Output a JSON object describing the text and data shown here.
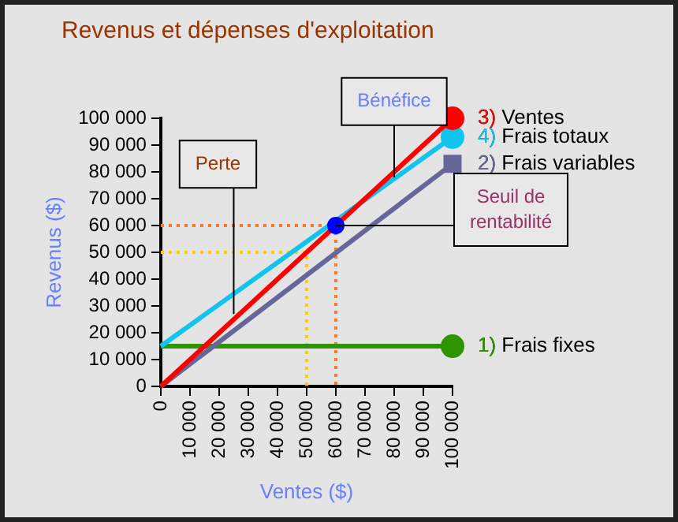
{
  "chart_data": {
    "type": "line",
    "title": "Revenus et dépenses d'exploitation",
    "xlabel": "Ventes ($)",
    "ylabel": "Revenus ($)",
    "xlim": [
      0,
      100000
    ],
    "ylim": [
      0,
      100000
    ],
    "xticks": [
      0,
      {
        "value": 10000,
        "label": "10 000"
      },
      {
        "value": 20000,
        "label": "20 000"
      },
      {
        "value": 30000,
        "label": "30 000"
      },
      {
        "value": 40000,
        "label": "40 000"
      },
      {
        "value": 50000,
        "label": "50 000"
      },
      {
        "value": 60000,
        "label": "60 000"
      },
      {
        "value": 70000,
        "label": "70 000"
      },
      {
        "value": 80000,
        "label": "80 000"
      },
      {
        "value": 90000,
        "label": "90 000"
      },
      {
        "value": 100000,
        "label": "100 000"
      }
    ],
    "yticks": [
      0,
      {
        "value": 10000,
        "label": "10 000"
      },
      {
        "value": 20000,
        "label": "20 000"
      },
      {
        "value": 30000,
        "label": "30 000"
      },
      {
        "value": 40000,
        "label": "40 000"
      },
      {
        "value": 50000,
        "label": "50 000"
      },
      {
        "value": 60000,
        "label": "60 000"
      },
      {
        "value": 70000,
        "label": "70 000"
      },
      {
        "value": 80000,
        "label": "80 000"
      },
      {
        "value": 90000,
        "label": "90 000"
      },
      {
        "value": 100000,
        "label": "100 000"
      }
    ],
    "grid": false,
    "line_style": "solid",
    "series": [
      {
        "name": "3) Ventes",
        "color": "#ff0000",
        "x": [
          0,
          100000
        ],
        "values": [
          0,
          100000
        ],
        "marker": "circle"
      },
      {
        "name": "4) Frais totaux",
        "color": "#11c4ee",
        "x": [
          0,
          100000
        ],
        "values": [
          15000,
          93000
        ],
        "marker": "circle"
      },
      {
        "name": "2) Frais variables",
        "color": "#66669a",
        "x": [
          0,
          100000
        ],
        "values": [
          0,
          83000
        ],
        "marker": "square"
      },
      {
        "name": "1) Frais fixes",
        "color": "#2f9400",
        "x": [
          0,
          100000
        ],
        "values": [
          15000,
          15000
        ],
        "marker": "circle"
      },
      {
        "color": "#ff7722",
        "x": [
          0,
          60000,
          60000
        ],
        "values": [
          60000,
          60000,
          0
        ],
        "line_style": "dotted",
        "marker": "none"
      },
      {
        "color": "#ffcc00",
        "x": [
          0,
          50000,
          50000
        ],
        "values": [
          50000,
          50000,
          0
        ],
        "line_style": "dotted",
        "marker": "none"
      },
      {
        "type": "scatter",
        "color": "#0000ff",
        "x": [
          60000
        ],
        "values": [
          60000
        ],
        "marker": "circle"
      }
    ],
    "annotations": [
      {
        "text": "Bénéfice",
        "x": 80000,
        "y": 78000
      },
      {
        "text": "Perte",
        "x": 25000,
        "y": 27000
      },
      {
        "text": "Seuil de rentabilité",
        "x": 60000,
        "y": 60000
      }
    ]
  }
}
